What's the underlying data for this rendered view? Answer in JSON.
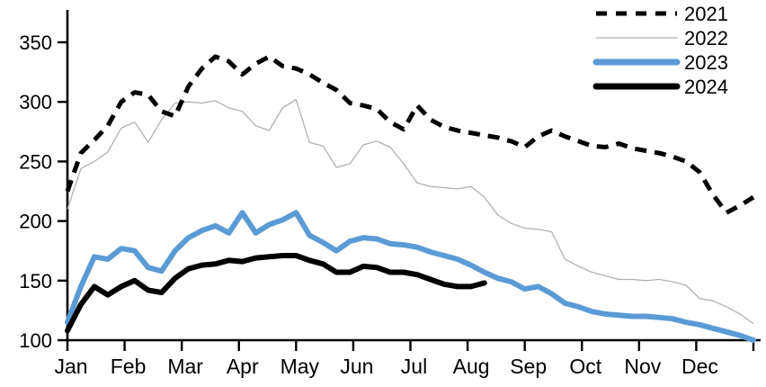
{
  "chart_data": {
    "type": "line",
    "title": "",
    "xlabel": "",
    "ylabel": "",
    "x_axis": {
      "tick_labels": [
        "Jan",
        "Feb",
        "Mar",
        "Apr",
        "May",
        "Jun",
        "Jul",
        "Aug",
        "Sep",
        "Oct",
        "Nov",
        "Dec"
      ],
      "resolution": "weekly (52 points per year)"
    },
    "y_axis": {
      "ticks": [
        100,
        150,
        200,
        250,
        300,
        350
      ],
      "ylim": [
        100,
        350
      ]
    },
    "grid": false,
    "legend_position": "top-right",
    "series": [
      {
        "name": "2022",
        "color": "#b0b0b0",
        "style": "thin-solid",
        "values": [
          210,
          244,
          250,
          258,
          278,
          283,
          266,
          285,
          299,
          300,
          299,
          301,
          295,
          292,
          280,
          276,
          295,
          302,
          266,
          263,
          245,
          248,
          264,
          267,
          262,
          248,
          232,
          229,
          228,
          227,
          229,
          220,
          205,
          198,
          194,
          193,
          191,
          168,
          162,
          157,
          154,
          151,
          151,
          150,
          151,
          149,
          146,
          135,
          133,
          128,
          122,
          114
        ]
      },
      {
        "name": "2021",
        "color": "#000000",
        "style": "thick-dashed",
        "values": [
          225,
          257,
          268,
          280,
          300,
          308,
          306,
          292,
          288,
          313,
          328,
          338,
          334,
          323,
          332,
          338,
          330,
          328,
          323,
          316,
          310,
          299,
          297,
          294,
          283,
          277,
          297,
          285,
          279,
          276,
          274,
          272,
          270,
          267,
          262,
          271,
          276,
          271,
          267,
          263,
          262,
          265,
          261,
          259,
          257,
          254,
          250,
          241,
          222,
          207,
          213,
          220
        ]
      },
      {
        "name": "2023",
        "color": "#5b9bd5",
        "style": "thick-solid",
        "values": [
          115,
          145,
          170,
          168,
          177,
          175,
          161,
          158,
          175,
          186,
          192,
          196,
          190,
          207,
          190,
          197,
          201,
          207,
          188,
          182,
          175,
          183,
          186,
          185,
          181,
          180,
          178,
          174,
          171,
          168,
          163,
          157,
          152,
          149,
          143,
          145,
          139,
          131,
          128,
          124,
          122,
          121,
          120,
          120,
          119,
          118,
          115,
          113,
          110,
          107,
          104,
          100
        ]
      },
      {
        "name": "2024",
        "color": "#000000",
        "style": "thick-solid",
        "values": [
          108,
          130,
          145,
          138,
          145,
          150,
          142,
          140,
          152,
          160,
          163,
          164,
          167,
          166,
          169,
          170,
          171,
          171,
          167,
          164,
          157,
          157,
          162,
          161,
          157,
          157,
          155,
          151,
          147,
          145,
          145,
          148
        ]
      }
    ],
    "legend_order": [
      "2021",
      "2022",
      "2023",
      "2024"
    ]
  }
}
